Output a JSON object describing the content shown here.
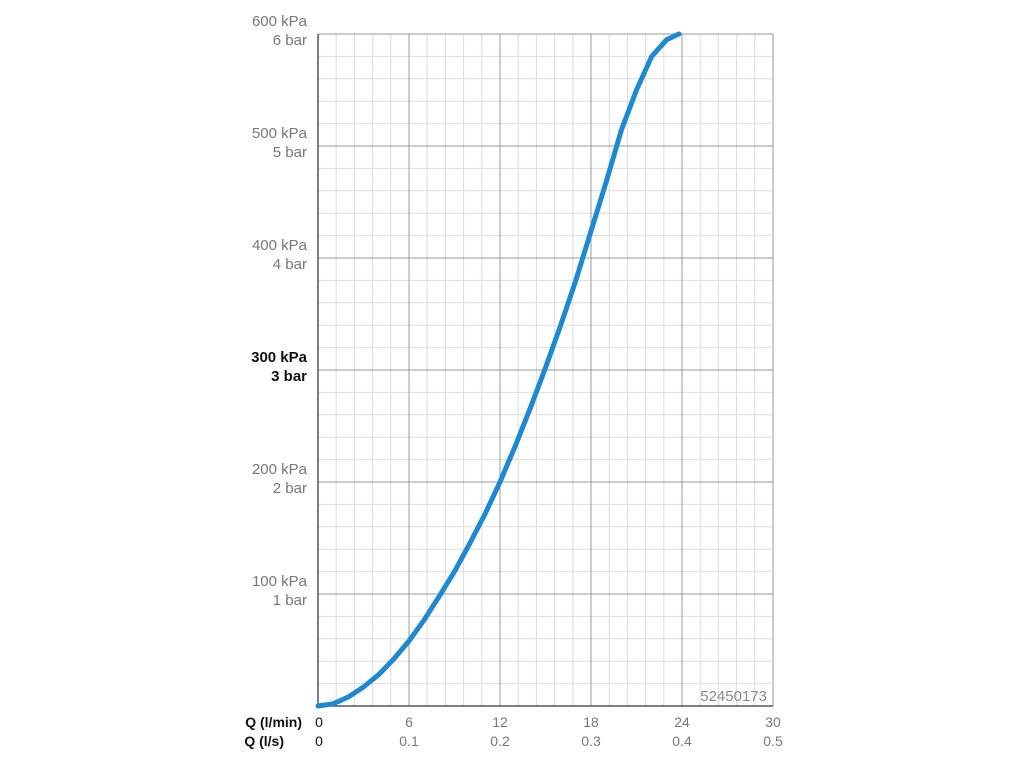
{
  "chart_data": {
    "type": "line",
    "title": "",
    "xlabel_primary": "Q (l/min)",
    "xlabel_secondary": "Q (l/s)",
    "x_ticks_primary": [
      "0",
      "6",
      "12",
      "18",
      "24",
      "30"
    ],
    "x_ticks_secondary": [
      "0",
      "0.1",
      "0.2",
      "0.3",
      "0.4",
      "0.5"
    ],
    "y_ticks": [
      {
        "kpa": "100 kPa",
        "bar": "1 bar",
        "value": 100,
        "bold": false
      },
      {
        "kpa": "200 kPa",
        "bar": "2 bar",
        "value": 200,
        "bold": false
      },
      {
        "kpa": "300 kPa",
        "bar": "3 bar",
        "value": 300,
        "bold": true
      },
      {
        "kpa": "400 kPa",
        "bar": "4 bar",
        "value": 400,
        "bold": false
      },
      {
        "kpa": "500 kPa",
        "bar": "5 bar",
        "value": 500,
        "bold": false
      },
      {
        "kpa": "600 kPa",
        "bar": "6 bar",
        "value": 600,
        "bold": false
      }
    ],
    "xlim": [
      0,
      30
    ],
    "ylim": [
      0,
      600
    ],
    "x_major_step": 6,
    "x_minor_step": 1.2,
    "y_major_step": 100,
    "y_minor_step": 20,
    "grid": true,
    "series": [
      {
        "color": "#1e88d2",
        "x": [
          0,
          1,
          2,
          3,
          4,
          5,
          6,
          7,
          8,
          9,
          10,
          11,
          12,
          13,
          14,
          15,
          16,
          17,
          18,
          19,
          20,
          21,
          22,
          23,
          23.8
        ],
        "y": [
          0,
          2,
          8,
          17,
          28,
          42,
          58,
          77,
          98,
          120,
          145,
          171,
          200,
          232,
          266,
          302,
          340,
          380,
          424,
          468,
          514,
          550,
          580,
          595,
          600
        ]
      }
    ],
    "annotation": "52450173"
  },
  "colors": {
    "curve": "#1e88d2",
    "grid_major": "#999999",
    "grid_minor": "#dddddd",
    "axis": "#555555",
    "tick_text": "#777777",
    "label_text": "#111111",
    "annotation_text": "#888888"
  }
}
